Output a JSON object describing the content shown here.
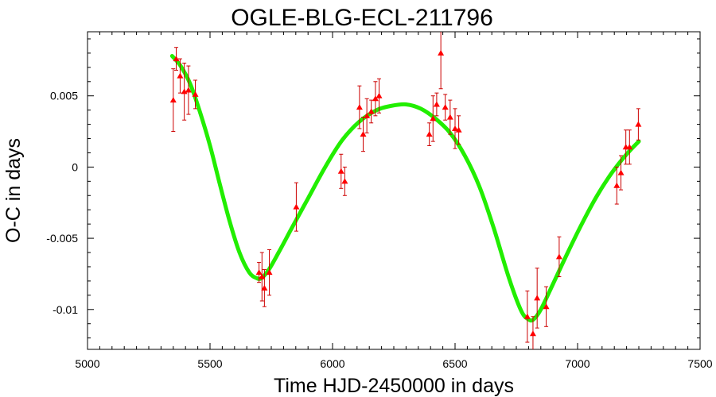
{
  "chart_data": {
    "type": "scatter",
    "title": "OGLE-BLG-ECL-211796",
    "xlabel": "Time HJD-2450000 in days",
    "ylabel": "O-C in days",
    "xlim": [
      5000,
      7500
    ],
    "ylim": [
      -0.0128,
      0.0095
    ],
    "x_ticks": [
      5000,
      5500,
      6000,
      6500,
      7000,
      7500
    ],
    "x_tick_labels": [
      "5000",
      "5500",
      "6000",
      "6500",
      "7000",
      "7500"
    ],
    "y_ticks": [
      -0.01,
      -0.005,
      0,
      0.005
    ],
    "y_tick_labels": [
      "-0.01",
      "-0.005",
      "0",
      "0.005"
    ],
    "grid": false,
    "colors": {
      "points": "#ff0000",
      "errorbars": "#cc0000",
      "fit": "#22ee00"
    },
    "series": [
      {
        "kind": "points-with-errorbars",
        "points": [
          {
            "x": 5350,
            "y": 0.0047,
            "err": 0.0022
          },
          {
            "x": 5362,
            "y": 0.0076,
            "err": 0.0008
          },
          {
            "x": 5378,
            "y": 0.0064,
            "err": 0.0012
          },
          {
            "x": 5395,
            "y": 0.0053,
            "err": 0.002
          },
          {
            "x": 5412,
            "y": 0.0054,
            "err": 0.0017
          },
          {
            "x": 5440,
            "y": 0.0051,
            "err": 0.001
          },
          {
            "x": 5700,
            "y": -0.0074,
            "err": 0.0007
          },
          {
            "x": 5712,
            "y": -0.0077,
            "err": 0.0017
          },
          {
            "x": 5722,
            "y": -0.0085,
            "err": 0.0013
          },
          {
            "x": 5742,
            "y": -0.0074,
            "err": 0.0016
          },
          {
            "x": 5852,
            "y": -0.0028,
            "err": 0.0017
          },
          {
            "x": 6035,
            "y": -0.0003,
            "err": 0.0012
          },
          {
            "x": 6050,
            "y": -0.001,
            "err": 0.001
          },
          {
            "x": 6110,
            "y": 0.0042,
            "err": 0.0015
          },
          {
            "x": 6125,
            "y": 0.0023,
            "err": 0.0012
          },
          {
            "x": 6140,
            "y": 0.0036,
            "err": 0.0012
          },
          {
            "x": 6158,
            "y": 0.0039,
            "err": 0.0008
          },
          {
            "x": 6175,
            "y": 0.0048,
            "err": 0.0012
          },
          {
            "x": 6190,
            "y": 0.005,
            "err": 0.0012
          },
          {
            "x": 6395,
            "y": 0.0023,
            "err": 0.0008
          },
          {
            "x": 6410,
            "y": 0.0034,
            "err": 0.0016
          },
          {
            "x": 6425,
            "y": 0.0044,
            "err": 0.0008
          },
          {
            "x": 6442,
            "y": 0.008,
            "err": 0.0025
          },
          {
            "x": 6460,
            "y": 0.0042,
            "err": 0.0009
          },
          {
            "x": 6480,
            "y": 0.0035,
            "err": 0.0012
          },
          {
            "x": 6500,
            "y": 0.0027,
            "err": 0.0014
          },
          {
            "x": 6515,
            "y": 0.0026,
            "err": 0.001
          },
          {
            "x": 6795,
            "y": -0.0105,
            "err": 0.0018
          },
          {
            "x": 6818,
            "y": -0.0117,
            "err": 0.0012
          },
          {
            "x": 6835,
            "y": -0.0092,
            "err": 0.0021
          },
          {
            "x": 6872,
            "y": -0.0098,
            "err": 0.0014
          },
          {
            "x": 6925,
            "y": -0.0063,
            "err": 0.0014
          },
          {
            "x": 7160,
            "y": -0.0013,
            "err": 0.0013
          },
          {
            "x": 7177,
            "y": -0.0004,
            "err": 0.0012
          },
          {
            "x": 7197,
            "y": 0.0014,
            "err": 0.0012
          },
          {
            "x": 7212,
            "y": 0.0014,
            "err": 0.0012
          },
          {
            "x": 7248,
            "y": 0.003,
            "err": 0.0011
          }
        ]
      },
      {
        "kind": "fit-curve",
        "points": [
          {
            "x": 5345,
            "y": 0.0078
          },
          {
            "x": 5380,
            "y": 0.0071
          },
          {
            "x": 5420,
            "y": 0.0058
          },
          {
            "x": 5460,
            "y": 0.0038
          },
          {
            "x": 5500,
            "y": 0.0015
          },
          {
            "x": 5540,
            "y": -0.0012
          },
          {
            "x": 5580,
            "y": -0.0038
          },
          {
            "x": 5620,
            "y": -0.006
          },
          {
            "x": 5660,
            "y": -0.0074
          },
          {
            "x": 5690,
            "y": -0.0078
          },
          {
            "x": 5710,
            "y": -0.0078
          },
          {
            "x": 5740,
            "y": -0.0072
          },
          {
            "x": 5780,
            "y": -0.006
          },
          {
            "x": 5830,
            "y": -0.0044
          },
          {
            "x": 5900,
            "y": -0.0022
          },
          {
            "x": 5970,
            "y": 0.0
          },
          {
            "x": 6040,
            "y": 0.0019
          },
          {
            "x": 6110,
            "y": 0.0032
          },
          {
            "x": 6180,
            "y": 0.004
          },
          {
            "x": 6240,
            "y": 0.0043
          },
          {
            "x": 6300,
            "y": 0.0044
          },
          {
            "x": 6360,
            "y": 0.0041
          },
          {
            "x": 6420,
            "y": 0.0034
          },
          {
            "x": 6480,
            "y": 0.0024
          },
          {
            "x": 6540,
            "y": 0.0008
          },
          {
            "x": 6600,
            "y": -0.0014
          },
          {
            "x": 6660,
            "y": -0.0044
          },
          {
            "x": 6720,
            "y": -0.0078
          },
          {
            "x": 6770,
            "y": -0.0101
          },
          {
            "x": 6800,
            "y": -0.0107
          },
          {
            "x": 6820,
            "y": -0.0107
          },
          {
            "x": 6850,
            "y": -0.01
          },
          {
            "x": 6900,
            "y": -0.0082
          },
          {
            "x": 6960,
            "y": -0.006
          },
          {
            "x": 7020,
            "y": -0.0039
          },
          {
            "x": 7080,
            "y": -0.002
          },
          {
            "x": 7140,
            "y": -0.0004
          },
          {
            "x": 7200,
            "y": 0.0009
          },
          {
            "x": 7250,
            "y": 0.0018
          }
        ]
      }
    ]
  }
}
